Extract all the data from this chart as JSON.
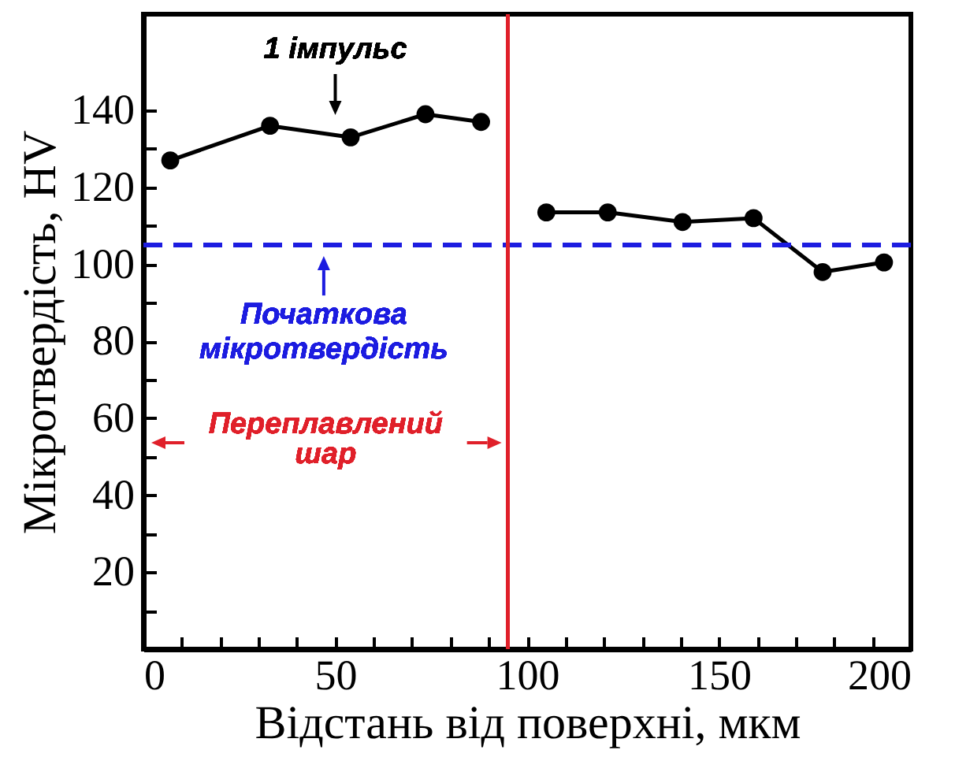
{
  "chart_data": {
    "type": "line",
    "xlabel": "Відстань від поверхні, мкм",
    "ylabel": "Мікротвердість, HV",
    "series": [
      {
        "color": "#000000",
        "x": [
          7,
          33,
          54,
          73.5,
          88
        ],
        "values": [
          127,
          136,
          133,
          139,
          137
        ]
      },
      {
        "color": "#000000",
        "x": [
          105,
          121,
          140.5,
          159,
          177,
          193
        ],
        "values": [
          113.5,
          113.5,
          111,
          112,
          98,
          100.5
        ]
      }
    ],
    "xlim": [
      0,
      200
    ],
    "xticks": [
      0,
      {
        "value": 10,
        "label": null
      },
      {
        "value": 20,
        "label": null
      },
      {
        "value": 30,
        "label": null
      },
      {
        "value": 40,
        "label": null
      },
      50,
      {
        "value": 60,
        "label": null
      },
      {
        "value": 70,
        "label": null
      },
      {
        "value": 80,
        "label": null
      },
      {
        "value": 90,
        "label": null
      },
      100,
      {
        "value": 110,
        "label": null
      },
      {
        "value": 120,
        "label": null
      },
      {
        "value": 130,
        "label": null
      },
      {
        "value": 140,
        "label": null
      },
      150,
      {
        "value": 160,
        "label": null
      },
      {
        "value": 170,
        "label": null
      },
      {
        "value": 180,
        "label": null
      },
      {
        "value": 190,
        "label": null
      },
      200
    ],
    "ylim": [
      0,
      165
    ],
    "yticks": [
      {
        "value": 10,
        "label": null
      },
      20,
      {
        "value": 30,
        "label": null
      },
      40,
      {
        "value": 50,
        "label": null
      },
      60,
      {
        "value": 70,
        "label": null
      },
      80,
      {
        "value": 90,
        "label": null
      },
      100,
      {
        "value": 110,
        "label": null
      },
      120,
      {
        "value": 130,
        "label": null
      },
      140
    ],
    "ref_lines": [
      {
        "axis": "y",
        "value": 105,
        "label": "Початкова мікротвердість",
        "color": "#1c1ce0",
        "line_style": "dashed"
      },
      {
        "axis": "x",
        "value": 95,
        "color": "#e0202a",
        "line_style": "solid"
      }
    ],
    "annotations": [
      "1 імпульс",
      "Переплавлений шар"
    ],
    "marker": "circle",
    "line_style": "solid"
  }
}
